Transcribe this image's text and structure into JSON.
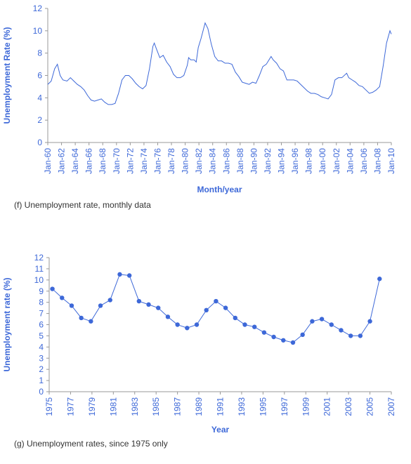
{
  "chart_data": [
    {
      "type": "line",
      "y_label": "Unemployment Rate (%)",
      "x_label": "Month/year",
      "caption": "(f) Unemployment rate, monthly data",
      "color": "#3d68d8",
      "markers": false,
      "rotate_x_labels": true,
      "x": [
        1960.0,
        1960.5,
        1961.0,
        1961.4,
        1961.8,
        1962.2,
        1962.8,
        1963.3,
        1963.8,
        1964.3,
        1964.8,
        1965.3,
        1965.8,
        1966.3,
        1966.8,
        1967.3,
        1967.8,
        1968.3,
        1968.8,
        1969.3,
        1969.8,
        1970.3,
        1970.8,
        1971.3,
        1971.8,
        1972.3,
        1972.8,
        1973.3,
        1973.8,
        1974.3,
        1974.8,
        1975.3,
        1975.5,
        1975.8,
        1976.3,
        1976.8,
        1977.3,
        1977.8,
        1978.3,
        1978.8,
        1979.3,
        1979.8,
        1980.3,
        1980.5,
        1980.8,
        1981.3,
        1981.6,
        1981.9,
        1982.3,
        1982.9,
        1983.3,
        1983.8,
        1984.3,
        1984.8,
        1985.3,
        1985.8,
        1986.3,
        1986.8,
        1987.3,
        1987.8,
        1988.3,
        1988.8,
        1989.3,
        1989.8,
        1990.3,
        1990.8,
        1991.3,
        1991.8,
        1992.5,
        1992.8,
        1993.3,
        1993.8,
        1994.3,
        1994.8,
        1995.3,
        1995.8,
        1996.3,
        1996.8,
        1997.3,
        1997.8,
        1998.3,
        1998.8,
        1999.3,
        1999.8,
        2000.3,
        2000.8,
        2001.3,
        2001.8,
        2002.3,
        2002.8,
        2003.5,
        2003.8,
        2004.3,
        2004.8,
        2005.3,
        2005.8,
        2006.3,
        2006.8,
        2007.3,
        2007.8,
        2008.3,
        2008.8,
        2009.3,
        2009.8,
        2010.0
      ],
      "values": [
        5.2,
        5.5,
        6.6,
        7.0,
        6.0,
        5.6,
        5.5,
        5.8,
        5.5,
        5.2,
        5.0,
        4.7,
        4.2,
        3.8,
        3.7,
        3.8,
        3.9,
        3.6,
        3.4,
        3.4,
        3.5,
        4.4,
        5.6,
        6.0,
        6.0,
        5.7,
        5.3,
        5.0,
        4.8,
        5.1,
        6.6,
        8.6,
        8.9,
        8.4,
        7.6,
        7.8,
        7.2,
        6.8,
        6.1,
        5.8,
        5.8,
        6.0,
        6.9,
        7.6,
        7.4,
        7.4,
        7.2,
        8.5,
        9.3,
        10.7,
        10.2,
        8.8,
        7.7,
        7.3,
        7.3,
        7.1,
        7.1,
        7.0,
        6.3,
        5.9,
        5.4,
        5.3,
        5.2,
        5.4,
        5.3,
        6.0,
        6.8,
        7.0,
        7.7,
        7.4,
        7.1,
        6.6,
        6.4,
        5.6,
        5.6,
        5.6,
        5.5,
        5.2,
        4.9,
        4.6,
        4.4,
        4.4,
        4.3,
        4.1,
        4.0,
        3.9,
        4.3,
        5.6,
        5.8,
        5.8,
        6.2,
        5.8,
        5.6,
        5.4,
        5.1,
        5.0,
        4.7,
        4.4,
        4.5,
        4.7,
        5.0,
        6.8,
        8.9,
        10.0,
        9.7
      ],
      "xlim": [
        1960,
        2010
      ],
      "xticks": [
        {
          "value": 1960,
          "label": "Jan-60"
        },
        {
          "value": 1962,
          "label": "Jan-62"
        },
        {
          "value": 1964,
          "label": "Jan-64"
        },
        {
          "value": 1966,
          "label": "Jan-66"
        },
        {
          "value": 1968,
          "label": "Jan-68"
        },
        {
          "value": 1970,
          "label": "Jan-70"
        },
        {
          "value": 1972,
          "label": "Jan-72"
        },
        {
          "value": 1974,
          "label": "Jan-74"
        },
        {
          "value": 1976,
          "label": "Jan-76"
        },
        {
          "value": 1978,
          "label": "Jan-78"
        },
        {
          "value": 1980,
          "label": "Jan-80"
        },
        {
          "value": 1982,
          "label": "Jan-82"
        },
        {
          "value": 1984,
          "label": "Jan-84"
        },
        {
          "value": 1986,
          "label": "Jan-86"
        },
        {
          "value": 1988,
          "label": "Jan-88"
        },
        {
          "value": 1990,
          "label": "Jan-90"
        },
        {
          "value": 1992,
          "label": "Jan-92"
        },
        {
          "value": 1994,
          "label": "Jan-94"
        },
        {
          "value": 1996,
          "label": "Jan-96"
        },
        {
          "value": 1998,
          "label": "Jan-98"
        },
        {
          "value": 2000,
          "label": "Jan-00"
        },
        {
          "value": 2002,
          "label": "Jan-02"
        },
        {
          "value": 2004,
          "label": "Jan-04"
        },
        {
          "value": 2006,
          "label": "Jan-06"
        },
        {
          "value": 2008,
          "label": "Jan-08"
        },
        {
          "value": 2010,
          "label": "Jan-10"
        }
      ],
      "ylim": [
        0,
        12
      ],
      "yticks": [
        0,
        2,
        4,
        6,
        8,
        10,
        12
      ]
    },
    {
      "type": "line",
      "y_label": "Unemployment rate (%)",
      "x_label": "Year",
      "caption": "(g) Unemployment rates, since 1975 only",
      "color": "#3d68d8",
      "markers": true,
      "rotate_x_labels": true,
      "x": [
        1975.3,
        1976.2,
        1977.1,
        1978.0,
        1978.9,
        1979.8,
        1980.7,
        1981.6,
        1982.5,
        1983.4,
        1984.3,
        1985.2,
        1986.1,
        1987.0,
        1987.9,
        1988.8,
        1989.7,
        1990.6,
        1991.5,
        1992.4,
        1993.3,
        1994.2,
        1995.1,
        1996.0,
        1996.9,
        1997.8,
        1998.7,
        1999.6,
        2000.5,
        2001.4,
        2002.3,
        2003.2,
        2004.1,
        2005.0,
        2005.9
      ],
      "values": [
        9.2,
        8.4,
        7.7,
        6.6,
        6.3,
        7.7,
        8.2,
        10.5,
        10.4,
        8.1,
        7.8,
        7.5,
        6.7,
        6.0,
        5.7,
        6.0,
        7.3,
        8.1,
        7.5,
        6.6,
        6.0,
        5.8,
        5.3,
        4.9,
        4.6,
        4.4,
        5.1,
        6.3,
        6.5,
        6.0,
        5.5,
        5.0,
        5.0,
        6.3,
        10.1
      ],
      "xlim": [
        1975,
        2007
      ],
      "xticks": [
        1975,
        1977,
        1979,
        1981,
        1983,
        1985,
        1987,
        1989,
        1991,
        1993,
        1995,
        1997,
        1999,
        2001,
        2003,
        2005,
        2007
      ],
      "ylim": [
        0,
        12
      ],
      "yticks": [
        0,
        1,
        2,
        3,
        4,
        5,
        6,
        7,
        8,
        9,
        10,
        11,
        12
      ]
    }
  ]
}
